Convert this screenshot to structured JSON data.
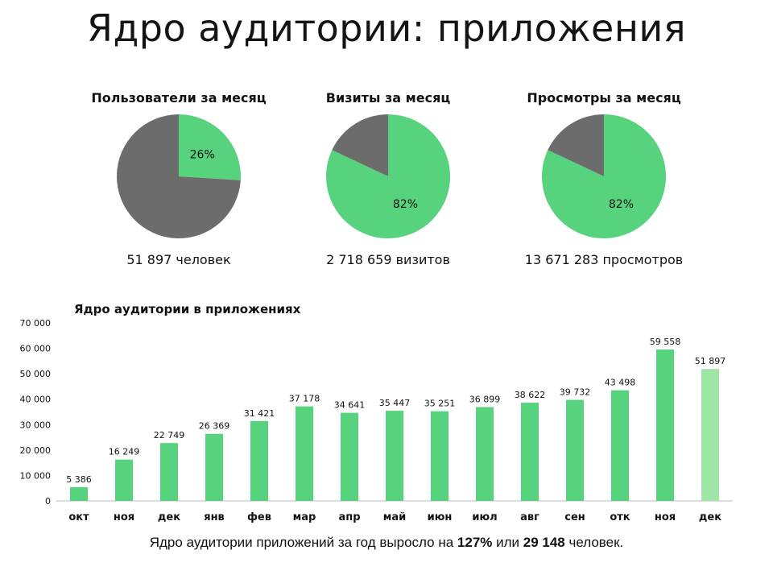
{
  "title": "Ядро аудитории: приложения",
  "colors": {
    "green": "#58d37d",
    "gray": "#6c6c6c",
    "light_green": "#9fe6a6"
  },
  "chart_data": [
    {
      "type": "pie",
      "title": "Пользователи за месяц",
      "slices": [
        {
          "value": 26,
          "color": "#58d37d",
          "label": "26%"
        },
        {
          "value": 74,
          "color": "#6c6c6c"
        }
      ],
      "caption": "51 897 человек"
    },
    {
      "type": "pie",
      "title": "Визиты за месяц",
      "slices": [
        {
          "value": 82,
          "color": "#58d37d",
          "label": "82%"
        },
        {
          "value": 18,
          "color": "#6c6c6c"
        }
      ],
      "caption": "2 718 659 визитов"
    },
    {
      "type": "pie",
      "title": "Просмотры за месяц",
      "slices": [
        {
          "value": 82,
          "color": "#58d37d",
          "label": "82%"
        },
        {
          "value": 18,
          "color": "#6c6c6c"
        }
      ],
      "caption": "13 671 283 просмотров"
    },
    {
      "type": "bar",
      "title": "Ядро аудитории в приложениях",
      "categories": [
        "окт",
        "ноя",
        "дек",
        "янв",
        "фев",
        "мар",
        "апр",
        "май",
        "июн",
        "июл",
        "авг",
        "сен",
        "отк",
        "ноя",
        "дек"
      ],
      "values": [
        5386,
        16249,
        22749,
        26369,
        31421,
        37178,
        34641,
        35447,
        35251,
        36899,
        38622,
        39732,
        43498,
        59558,
        51897
      ],
      "value_labels": [
        "5 386",
        "16 249",
        "22 749",
        "26 369",
        "31 421",
        "37 178",
        "34 641",
        "35 447",
        "35 251",
        "36 899",
        "38 622",
        "39 732",
        "43 498",
        "59 558",
        "51 897"
      ],
      "ylim": [
        0,
        70000
      ],
      "yticks": [
        0,
        10000,
        20000,
        30000,
        40000,
        50000,
        60000,
        70000
      ],
      "ytick_labels": [
        "0",
        "10 000",
        "20 000",
        "30 000",
        "40 000",
        "50 000",
        "60 000",
        "70 000"
      ],
      "bar_colors": [
        "#58d37d",
        "#58d37d",
        "#58d37d",
        "#58d37d",
        "#58d37d",
        "#58d37d",
        "#58d37d",
        "#58d37d",
        "#58d37d",
        "#58d37d",
        "#58d37d",
        "#58d37d",
        "#58d37d",
        "#58d37d",
        "#9fe6a6"
      ],
      "grid": false
    }
  ],
  "footer": {
    "text_before": "Ядро аудитории приложений за год выросло на ",
    "growth_percent": "127%",
    "text_middle": " или ",
    "growth_people": "29 148",
    "text_after": " человек."
  }
}
